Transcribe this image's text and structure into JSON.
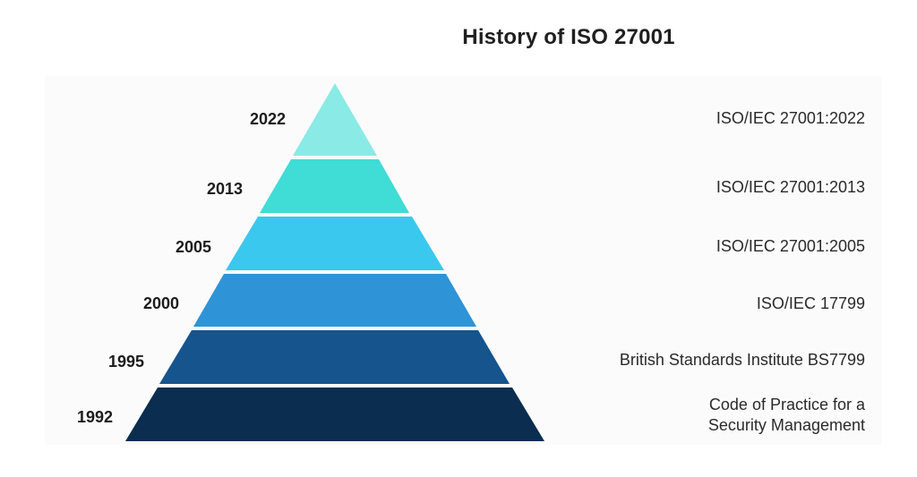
{
  "title": "History of ISO 27001",
  "tiers": [
    {
      "year": "2022",
      "description": "ISO/IEC 27001:2022",
      "color": "#8aeae6"
    },
    {
      "year": "2013",
      "description": "ISO/IEC 27001:2013",
      "color": "#40dcd6"
    },
    {
      "year": "2005",
      "description": "ISO/IEC 27001:2005",
      "color": "#3bc8ee"
    },
    {
      "year": "2000",
      "description": "ISO/IEC 17799",
      "color": "#2f93d7"
    },
    {
      "year": "1995",
      "description": "British Standards Institute BS7799",
      "color": "#15548d"
    },
    {
      "year": "1992",
      "description_line1": "Code of Practice for a",
      "description_line2": "Security Management",
      "color": "#0a2d50"
    }
  ]
}
